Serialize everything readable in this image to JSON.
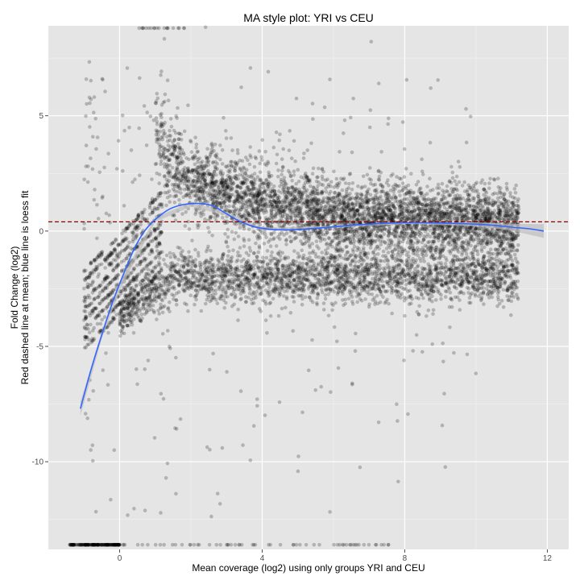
{
  "chart_data": {
    "type": "scatter",
    "title": "MA style plot: YRI vs  CEU",
    "xlabel": "Mean coverage (log2) using only groups YRI and CEU",
    "ylabel_lines": [
      "Fold Change (log2)",
      "Red dashed line at mean; blue line is loess fit"
    ],
    "xlim": [
      -2,
      12.6
    ],
    "ylim": [
      -13.8,
      8.9
    ],
    "x_ticks": [
      0,
      4,
      8,
      12
    ],
    "y_ticks": [
      5,
      0,
      -5,
      -10
    ],
    "x_tick_labels": [
      "0",
      "4",
      "8",
      "12"
    ],
    "y_tick_labels": [
      "5",
      "0",
      "-5",
      "-10"
    ],
    "grid": true,
    "legend": "none",
    "colors": {
      "panel": "#e5e5e5",
      "grid_major": "#ffffff",
      "grid_minor": "#f2f2f2",
      "points": "#000000",
      "loess": "#3366ff",
      "confidence_band": "#bdbdbd",
      "mean_line": "#8b0000"
    },
    "mean_line": {
      "y": 0.4,
      "style": "dashed"
    },
    "loess_fit": {
      "x": [
        -1.1,
        -0.8,
        -0.5,
        -0.2,
        0.1,
        0.4,
        0.7,
        1.0,
        1.4,
        1.8,
        2.2,
        2.6,
        3.0,
        3.4,
        3.8,
        4.2,
        4.6,
        5.0,
        5.5,
        6.0,
        6.5,
        7.0,
        7.5,
        8.0,
        8.5,
        9.0,
        9.5,
        10.0,
        10.5,
        11.0,
        11.5,
        11.9
      ],
      "y": [
        -7.7,
        -6.0,
        -4.5,
        -3.1,
        -1.9,
        -0.8,
        0.0,
        0.5,
        0.95,
        1.15,
        1.2,
        1.1,
        0.75,
        0.4,
        0.18,
        0.08,
        0.05,
        0.07,
        0.12,
        0.18,
        0.25,
        0.3,
        0.34,
        0.36,
        0.36,
        0.35,
        0.33,
        0.3,
        0.25,
        0.17,
        0.1,
        0.0
      ]
    },
    "confidence_band": {
      "x": [
        -1.1,
        -0.5,
        0.0,
        1.0,
        2.0,
        3.0,
        4.0,
        6.0,
        8.0,
        10.0,
        11.0,
        11.9
      ],
      "upper": [
        -7.4,
        -4.35,
        -2.2,
        0.6,
        1.25,
        0.82,
        0.14,
        0.22,
        0.41,
        0.38,
        0.32,
        0.3
      ],
      "lower": [
        -8.0,
        -4.65,
        -2.6,
        0.4,
        1.05,
        0.68,
        0.02,
        0.14,
        0.31,
        0.22,
        0.02,
        -0.3
      ]
    },
    "point_clusters": [
      {
        "name": "upper-band",
        "count": 4200,
        "x_range": [
          1.0,
          11.2
        ],
        "fit": "decay",
        "y_spread": 0.8
      },
      {
        "name": "lower-band",
        "count": 2600,
        "x_range": [
          0.0,
          11.2
        ],
        "center_y": -2.0,
        "y_spread": 0.55
      },
      {
        "name": "diagonal-streaks",
        "count": 700,
        "x_range": [
          -1.0,
          1.2
        ]
      },
      {
        "name": "bottom-floor",
        "count": 250,
        "x_range": [
          -1.4,
          7.6
        ],
        "y": -13.6
      },
      {
        "name": "top-ceiling",
        "count": 20,
        "x_range": [
          0.5,
          1.9
        ],
        "y": 8.8
      },
      {
        "name": "sparse-outliers",
        "count": 400,
        "x_range": [
          -1.0,
          10.0
        ],
        "y_range": [
          -12.8,
          7.0
        ]
      }
    ]
  }
}
